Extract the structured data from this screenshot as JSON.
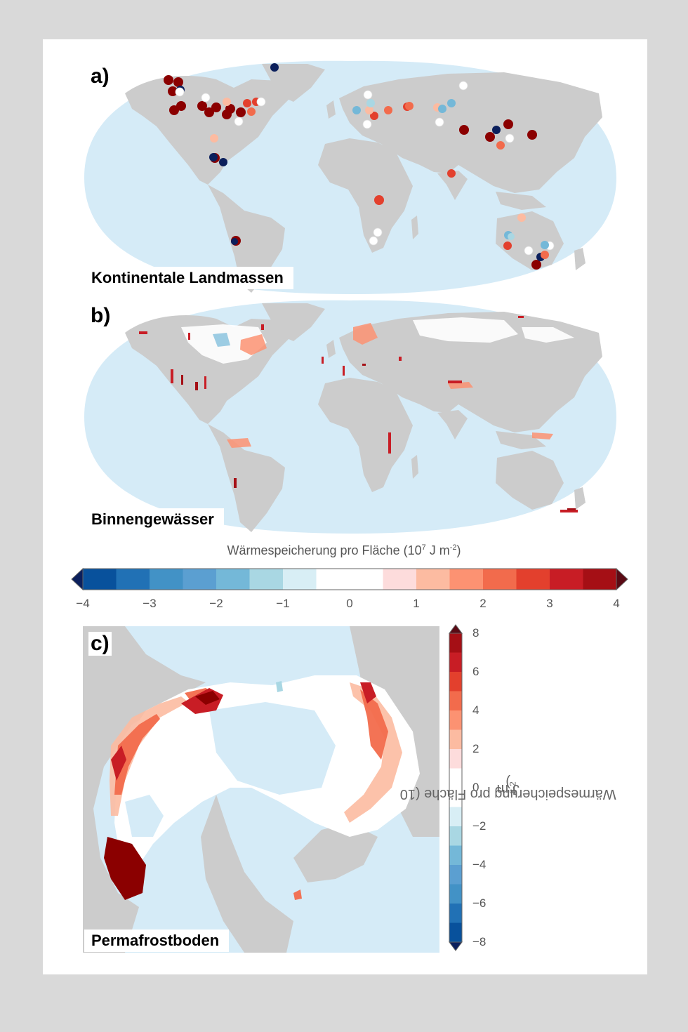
{
  "panels": [
    {
      "letter": "a)",
      "name": "Kontinentale Landmassen"
    },
    {
      "letter": "b)",
      "name": "Binnengewässer"
    },
    {
      "letter": "c)",
      "name": "Permafrostboden"
    }
  ],
  "colorbar_horizontal": {
    "title_prefix": "Wärmespeicherung pro Fläche (10",
    "title_exp1": "7",
    "title_mid": " J m",
    "title_exp2": "-2",
    "title_suffix": ")",
    "ticks": [
      "−4",
      "−3",
      "−2",
      "−1",
      "0",
      "1",
      "2",
      "3",
      "4"
    ],
    "colors": [
      "#08519c",
      "#2171b5",
      "#4292c6",
      "#5b9fd1",
      "#74b8d8",
      "#a9d7e3",
      "#d8eef5",
      "#ffffff",
      "#ffffff",
      "#fddcdc",
      "#fcbba1",
      "#fc9272",
      "#f26b4c",
      "#e3402d",
      "#c81d25",
      "#a50f15"
    ]
  },
  "colorbar_vertical": {
    "title_prefix": "Wärmespeicherung pro Fläche (10",
    "title_exp1": "8",
    "title_mid": " J m",
    "title_exp2": "-2",
    "title_suffix": ")",
    "ticks": [
      "8",
      "6",
      "4",
      "2",
      "0",
      "−2",
      "−4",
      "−6",
      "−8"
    ],
    "colors": [
      "#a50f15",
      "#c81d25",
      "#e3402d",
      "#f26b4c",
      "#fc9272",
      "#fcbba1",
      "#fddcdc",
      "#ffffff",
      "#ffffff",
      "#d8eef5",
      "#a9d7e3",
      "#74b8d8",
      "#5b9fd1",
      "#4292c6",
      "#2171b5",
      "#08519c"
    ]
  },
  "colors": {
    "ocean": "#d5ebf7",
    "land": "#cccccc",
    "background": "#d9d9d9",
    "card": "#ffffff",
    "warm_dark": "#8b0000",
    "cold_dark": "#0b1f5c"
  }
}
